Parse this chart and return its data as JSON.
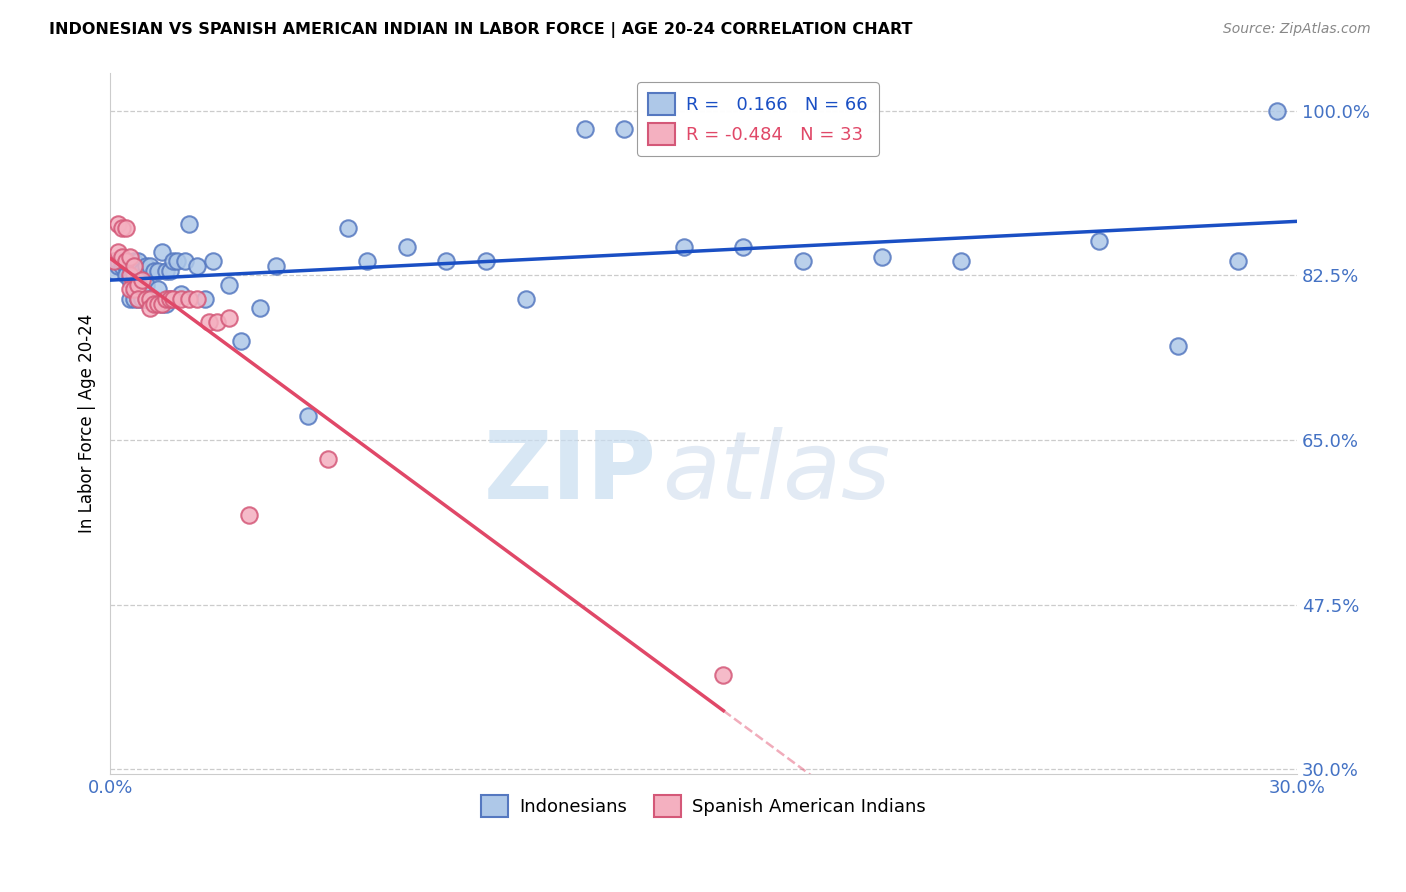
{
  "title": "INDONESIAN VS SPANISH AMERICAN INDIAN IN LABOR FORCE | AGE 20-24 CORRELATION CHART",
  "source": "Source: ZipAtlas.com",
  "ylabel": "In Labor Force | Age 20-24",
  "xlim": [
    0.0,
    0.3
  ],
  "ylim": [
    0.295,
    1.04
  ],
  "xticks": [
    0.0,
    0.05,
    0.1,
    0.15,
    0.2,
    0.25,
    0.3
  ],
  "xticklabels": [
    "0.0%",
    "",
    "",
    "",
    "",
    "",
    "30.0%"
  ],
  "yticks": [
    0.3,
    0.475,
    0.65,
    0.825,
    1.0
  ],
  "yticklabels": [
    "30.0%",
    "47.5%",
    "65.0%",
    "82.5%",
    "100.0%"
  ],
  "grid_color": "#cccccc",
  "axis_color": "#4472c4",
  "blue_face": "#aec8e8",
  "blue_edge": "#5578c0",
  "pink_face": "#f4b0c0",
  "pink_edge": "#d45878",
  "blue_line": "#1a4fc4",
  "pink_line": "#e04868",
  "r_blue": 0.166,
  "n_blue": 66,
  "r_pink": -0.484,
  "n_pink": 33,
  "indonesian_x": [
    0.001,
    0.002,
    0.002,
    0.003,
    0.003,
    0.004,
    0.004,
    0.004,
    0.005,
    0.005,
    0.005,
    0.006,
    0.006,
    0.006,
    0.007,
    0.007,
    0.007,
    0.007,
    0.008,
    0.008,
    0.008,
    0.009,
    0.009,
    0.009,
    0.01,
    0.01,
    0.011,
    0.011,
    0.012,
    0.012,
    0.013,
    0.013,
    0.014,
    0.014,
    0.015,
    0.015,
    0.016,
    0.017,
    0.018,
    0.019,
    0.02,
    0.022,
    0.024,
    0.026,
    0.03,
    0.033,
    0.038,
    0.042,
    0.05,
    0.06,
    0.065,
    0.075,
    0.085,
    0.095,
    0.105,
    0.12,
    0.13,
    0.145,
    0.16,
    0.175,
    0.195,
    0.215,
    0.25,
    0.27,
    0.285,
    0.295
  ],
  "indonesian_y": [
    0.83,
    0.835,
    0.84,
    0.835,
    0.84,
    0.835,
    0.84,
    0.825,
    0.8,
    0.82,
    0.835,
    0.8,
    0.825,
    0.84,
    0.8,
    0.81,
    0.82,
    0.84,
    0.8,
    0.81,
    0.83,
    0.8,
    0.815,
    0.835,
    0.8,
    0.835,
    0.8,
    0.83,
    0.81,
    0.83,
    0.795,
    0.85,
    0.795,
    0.83,
    0.8,
    0.83,
    0.84,
    0.84,
    0.805,
    0.84,
    0.88,
    0.835,
    0.8,
    0.84,
    0.815,
    0.755,
    0.79,
    0.835,
    0.675,
    0.875,
    0.84,
    0.855,
    0.84,
    0.84,
    0.8,
    0.98,
    0.98,
    0.855,
    0.855,
    0.84,
    0.845,
    0.84,
    0.862,
    0.75,
    0.84,
    1.0
  ],
  "spanish_x": [
    0.001,
    0.002,
    0.002,
    0.003,
    0.003,
    0.004,
    0.004,
    0.005,
    0.005,
    0.005,
    0.006,
    0.006,
    0.007,
    0.007,
    0.008,
    0.009,
    0.01,
    0.01,
    0.011,
    0.012,
    0.013,
    0.014,
    0.015,
    0.016,
    0.018,
    0.02,
    0.022,
    0.025,
    0.027,
    0.03,
    0.035,
    0.055,
    0.155
  ],
  "spanish_y": [
    0.84,
    0.88,
    0.85,
    0.875,
    0.845,
    0.875,
    0.84,
    0.845,
    0.825,
    0.81,
    0.835,
    0.81,
    0.815,
    0.8,
    0.82,
    0.8,
    0.8,
    0.79,
    0.795,
    0.795,
    0.795,
    0.8,
    0.8,
    0.8,
    0.8,
    0.8,
    0.8,
    0.775,
    0.775,
    0.78,
    0.57,
    0.63,
    0.4
  ],
  "pink_line_x_solid_end": 0.155,
  "pink_line_x_dash_end": 0.295
}
